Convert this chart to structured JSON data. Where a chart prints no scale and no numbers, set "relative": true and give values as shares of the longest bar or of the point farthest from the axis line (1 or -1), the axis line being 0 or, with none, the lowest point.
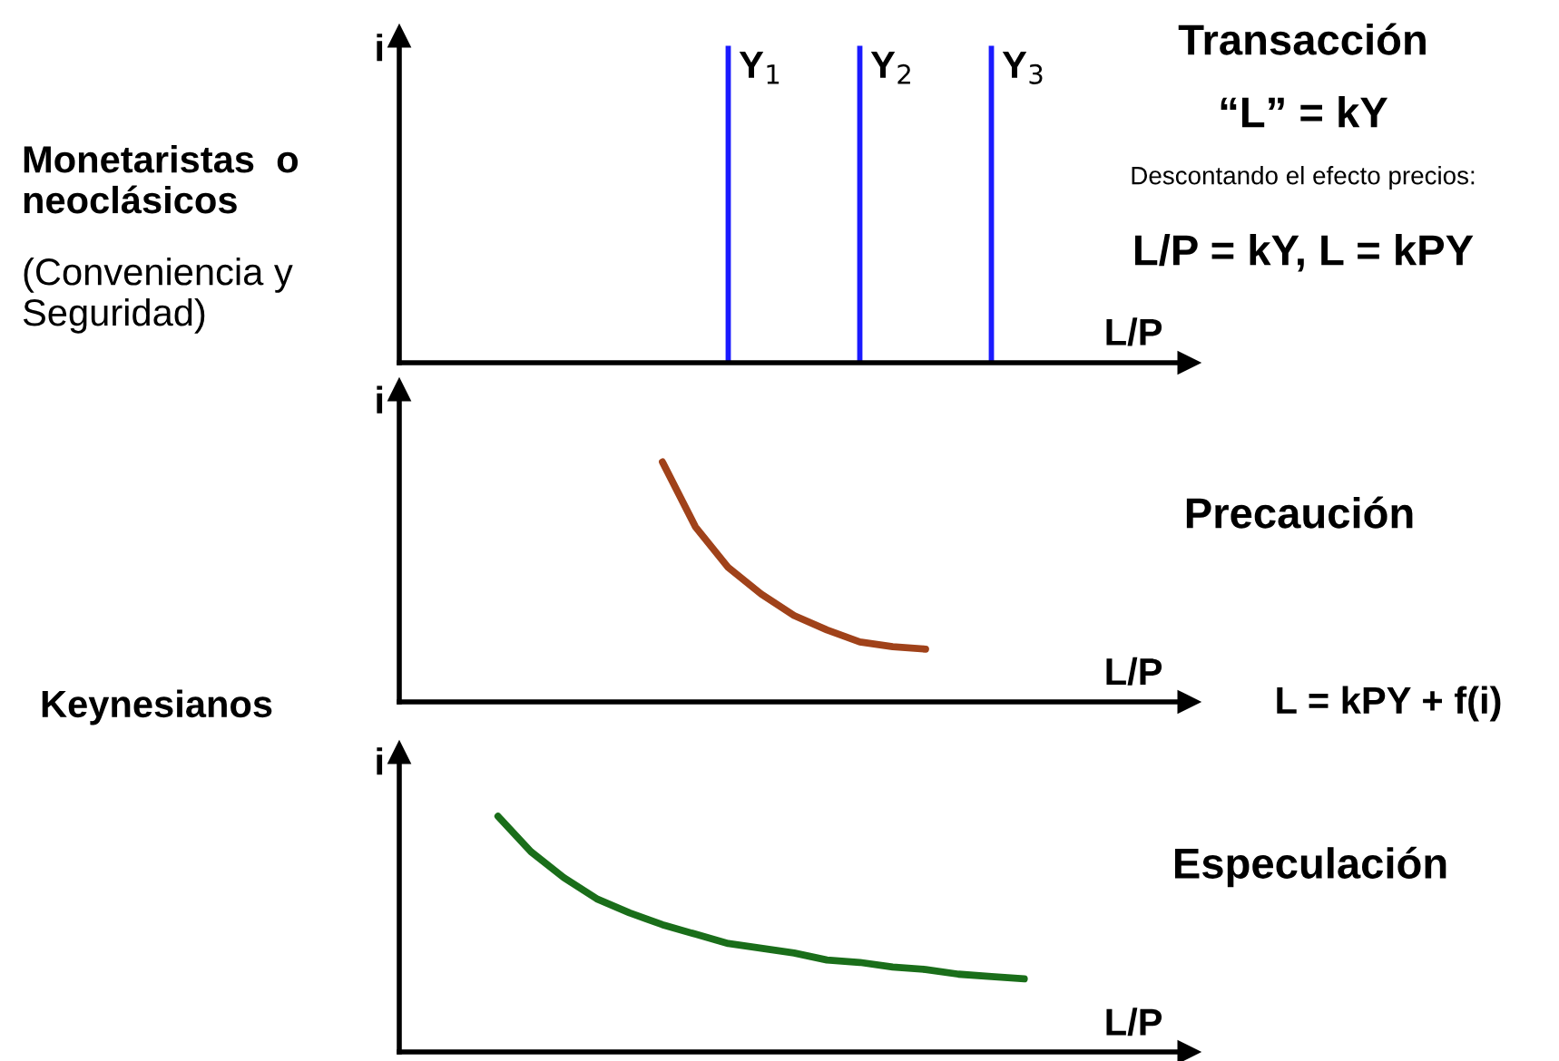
{
  "chart_data": [
    {
      "type": "bar",
      "relative": true,
      "xlabel": "L/P",
      "ylabel": "i",
      "color": "#1a1aff",
      "categories": [
        null,
        null,
        "Y$_{1}$",
        "Y$_{2}$",
        "Y$_{3}$",
        null
      ],
      "values": [
        null,
        null,
        1,
        1,
        1,
        null
      ],
      "annotations": [
        "Transacción",
        "“L” = kY",
        "Descontando el efecto precios:",
        "L/P = kY, L = kPY",
        "Monetaristas  o\nneoclásicos",
        "(Conveniencia y\nSeguridad)"
      ]
    },
    {
      "type": "line",
      "relative": true,
      "xlabel": "L/P",
      "ylabel": "i",
      "color": "#a0421a",
      "categories": [
        null,
        null,
        null,
        null,
        null,
        null,
        null,
        null,
        null,
        null,
        null,
        null,
        null,
        null,
        null,
        null,
        null,
        null,
        null,
        null,
        null,
        null,
        null,
        null,
        null
      ],
      "values": [
        null,
        null,
        null,
        null,
        null,
        null,
        null,
        null,
        1,
        0.73,
        0.56,
        0.45,
        0.36,
        0.3,
        0.25,
        0.23,
        0.22,
        null,
        null,
        null,
        null,
        null,
        null,
        null,
        null
      ],
      "annotations": [
        "Precaución",
        "L = kPY + f(i)",
        "Keynesianos"
      ]
    },
    {
      "type": "line",
      "relative": true,
      "xlabel": "L/P",
      "ylabel": "i",
      "color": "#1a6e1a",
      "categories": [
        null,
        null,
        null,
        null,
        null,
        null,
        null,
        null,
        null,
        null,
        null,
        null,
        null,
        null,
        null,
        null,
        null,
        null,
        null,
        null,
        null,
        null,
        null,
        null,
        null
      ],
      "values": [
        null,
        null,
        null,
        1,
        0.85,
        0.74,
        0.65,
        0.59,
        0.54,
        0.5,
        0.46,
        0.44,
        0.42,
        0.39,
        0.38,
        0.36,
        0.35,
        0.33,
        0.32,
        0.31,
        null,
        null,
        null,
        null,
        null
      ],
      "annotations": [
        "Especulación"
      ]
    }
  ]
}
